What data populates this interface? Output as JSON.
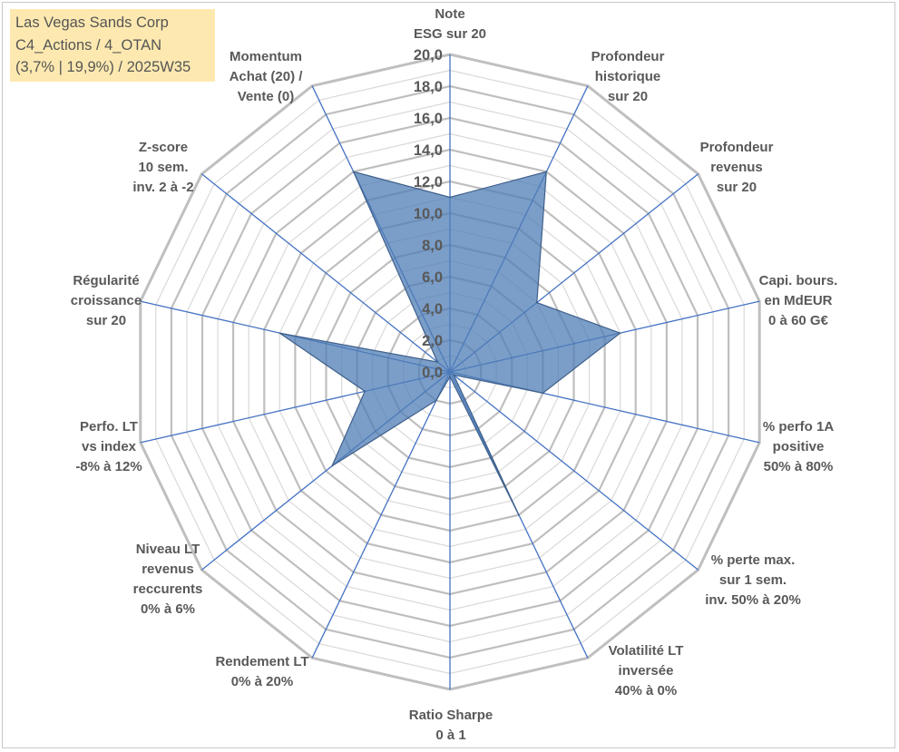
{
  "info": {
    "line1": "Las Vegas Sands Corp",
    "line2": "C4_Actions / 4_OTAN",
    "line3": "(3,7% | 19,9%) / 2025W35"
  },
  "chart_data": {
    "type": "radar",
    "title": "",
    "rmin": 0,
    "rmax": 20,
    "tick_step": 2,
    "tick_labels": [
      "0,0",
      "2,0",
      "4,0",
      "6,0",
      "8,0",
      "10,0",
      "12,0",
      "14,0",
      "16,0",
      "18,0",
      "20,0"
    ],
    "grid": true,
    "axes": [
      {
        "label": [
          "Note",
          "ESG sur 20"
        ],
        "value": 11.0
      },
      {
        "label": [
          "Profondeur",
          "historique",
          "sur 20"
        ],
        "value": 14.0
      },
      {
        "label": [
          "Profondeur",
          "revenus",
          "sur 20"
        ],
        "value": 7.0
      },
      {
        "label": [
          "Capi. bours.",
          "en MdEUR",
          "0 à 60 G€"
        ],
        "value": 11.0
      },
      {
        "label": [
          "% perfo 1A",
          "positive",
          "50% à 80%"
        ],
        "value": 6.0
      },
      {
        "label": [
          "% perte max.",
          "sur 1 sem.",
          "inv. 50% à 20%"
        ],
        "value": 0.3
      },
      {
        "label": [
          "Volatilité LT",
          "inversée",
          "40% à 0%"
        ],
        "value": 10.0
      },
      {
        "label": [
          "Ratio Sharpe",
          "0 à 1"
        ],
        "value": 0.3
      },
      {
        "label": [
          "Rendement LT",
          "0% à 20%"
        ],
        "value": 2.0
      },
      {
        "label": [
          "Niveau LT",
          "revenus",
          "reccurents",
          "0% à 6%"
        ],
        "value": 9.5
      },
      {
        "label": [
          "Perfo. LT",
          "vs index",
          "-8% à 12%"
        ],
        "value": 5.5
      },
      {
        "label": [
          "Régularité",
          "croissance",
          "sur 20"
        ],
        "value": 11.0
      },
      {
        "label": [
          "Z-score",
          "10 sem.",
          "inv. 2 à -2"
        ],
        "value": 1.0
      },
      {
        "label": [
          "Momentum",
          "Achat (20) /",
          "Vente (0)"
        ],
        "value": 14.0
      }
    ],
    "series": [
      {
        "values": [
          11.0,
          14.0,
          7.0,
          11.0,
          6.0,
          0.3,
          10.0,
          0.3,
          2.0,
          9.5,
          5.5,
          11.0,
          1.0,
          14.0
        ]
      }
    ],
    "colors": {
      "fill": "#4f7eb5",
      "fill_opacity": 0.75,
      "edge": "#3e5f8a",
      "spoke": "#4472c4",
      "outer_ring": "#bfbfbf",
      "inner_ring": "#d9d9d9"
    }
  }
}
